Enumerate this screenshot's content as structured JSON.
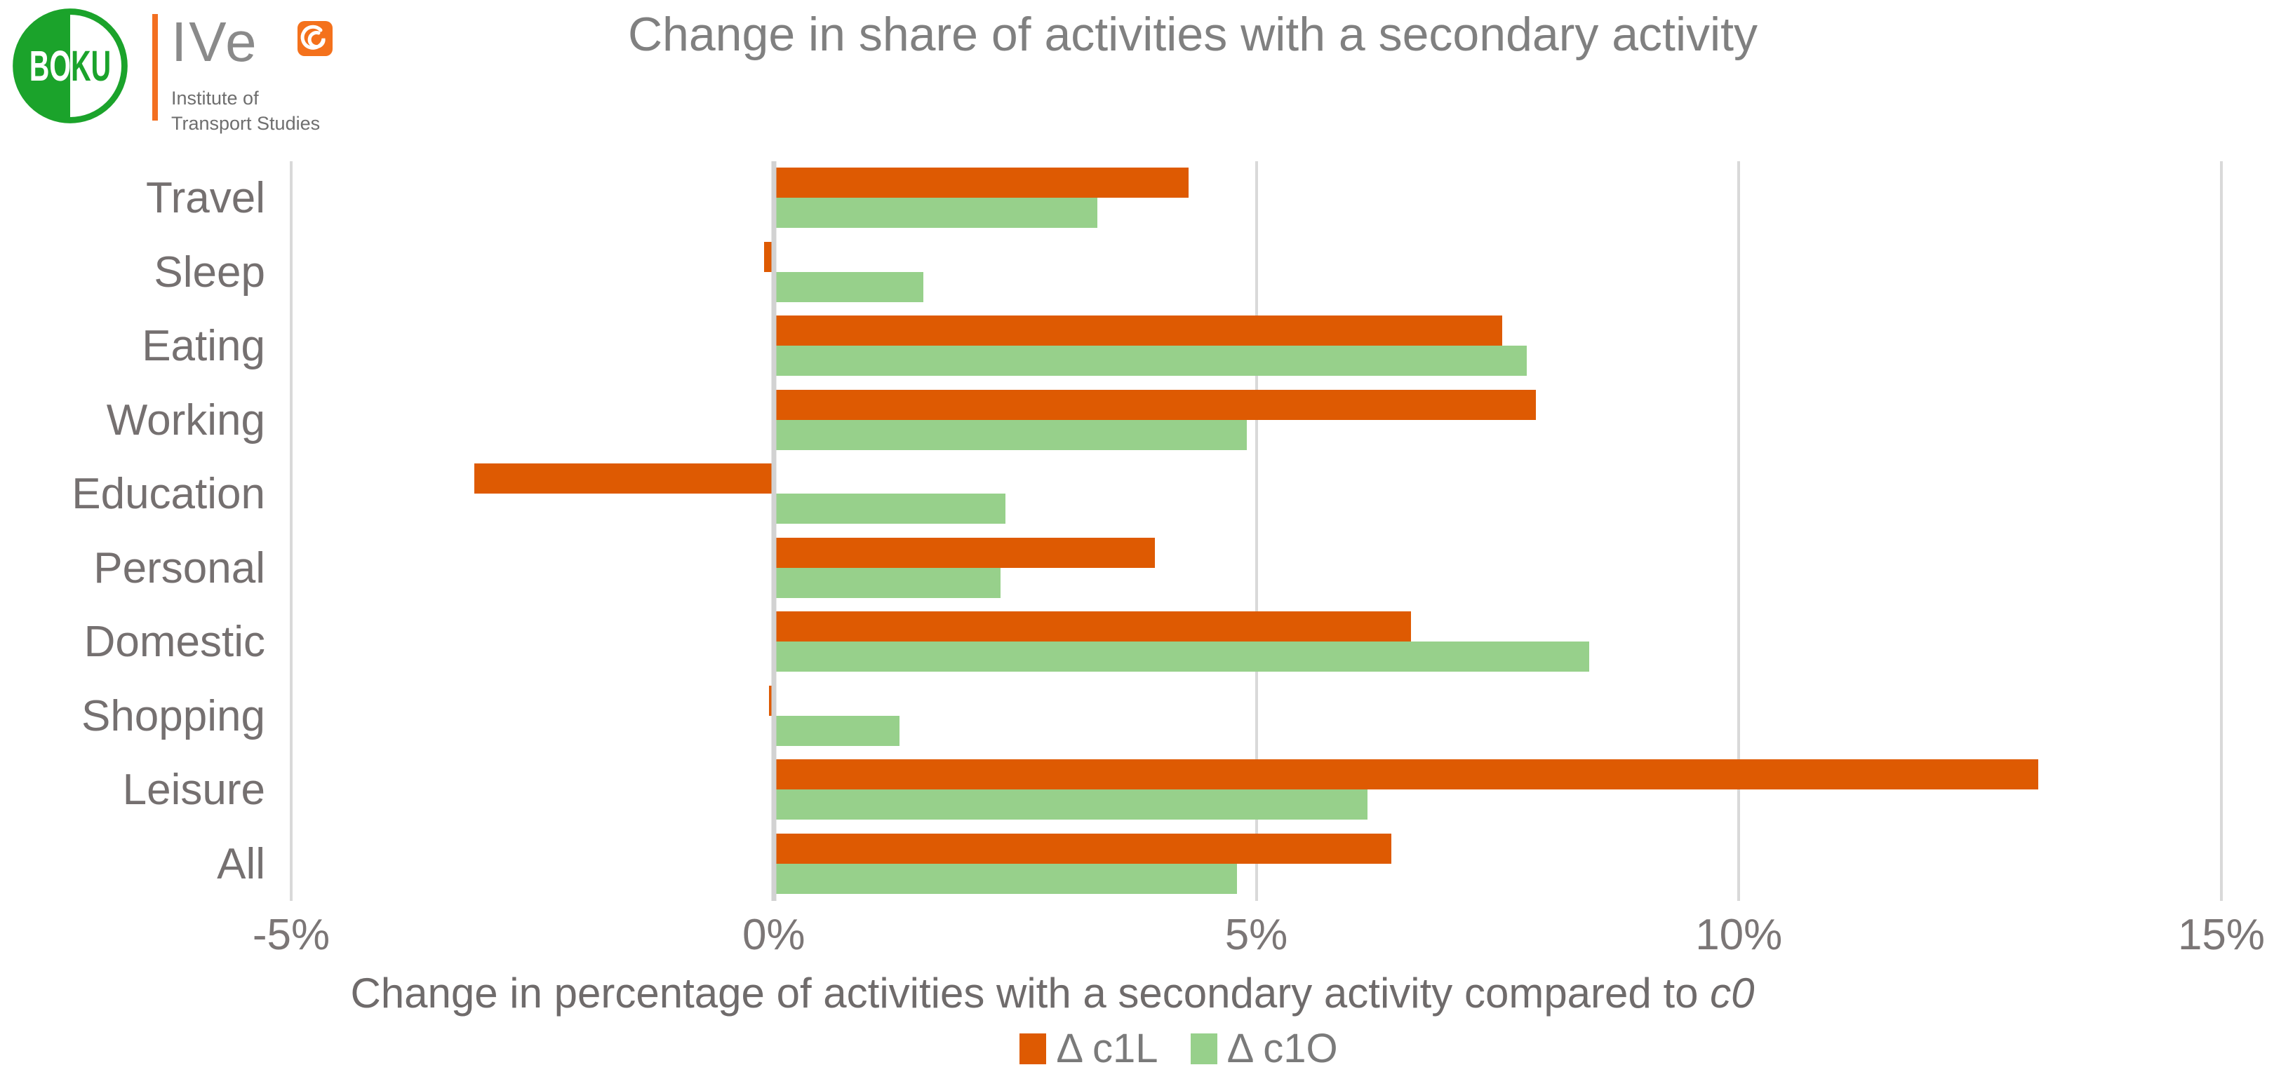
{
  "header": {
    "logo": {
      "boku_text": "BOKU",
      "ive_text": "IVe",
      "institute_line1": "Institute of",
      "institute_line2": "Transport Studies"
    },
    "title": "Change in share of activities with a secondary activity"
  },
  "chart_data": {
    "type": "bar",
    "orientation": "horizontal",
    "title": "Change in share of activities with a secondary activity",
    "categories": [
      "Travel",
      "Sleep",
      "Eating",
      "Working",
      "Education",
      "Personal",
      "Domestic",
      "Shopping",
      "Leisure",
      "All"
    ],
    "series": [
      {
        "id": "c1L",
        "name": "Δ c1L",
        "color": "#DE5A02",
        "values": [
          4.3,
          -0.1,
          7.55,
          7.9,
          -3.1,
          3.95,
          6.6,
          -0.05,
          13.1,
          6.4
        ]
      },
      {
        "id": "c1O",
        "name": "Δ c1O",
        "color": "#97D08B",
        "values": [
          3.35,
          1.55,
          7.8,
          4.9,
          2.4,
          2.35,
          8.45,
          1.3,
          6.15,
          4.8
        ]
      }
    ],
    "xlabel_main": "Change in percentage of activities with a secondary activity  compared to ",
    "xlabel_italic": "c0",
    "x_ticks": [
      "-5%",
      "0%",
      "5%",
      "10%",
      "15%"
    ],
    "x_tick_values": [
      -5,
      0,
      5,
      10,
      15
    ],
    "xlim": [
      -5,
      15
    ],
    "grid": true,
    "legend_position": "bottom",
    "gridline_color": "#D9D9D9",
    "value_unit": "percent"
  }
}
